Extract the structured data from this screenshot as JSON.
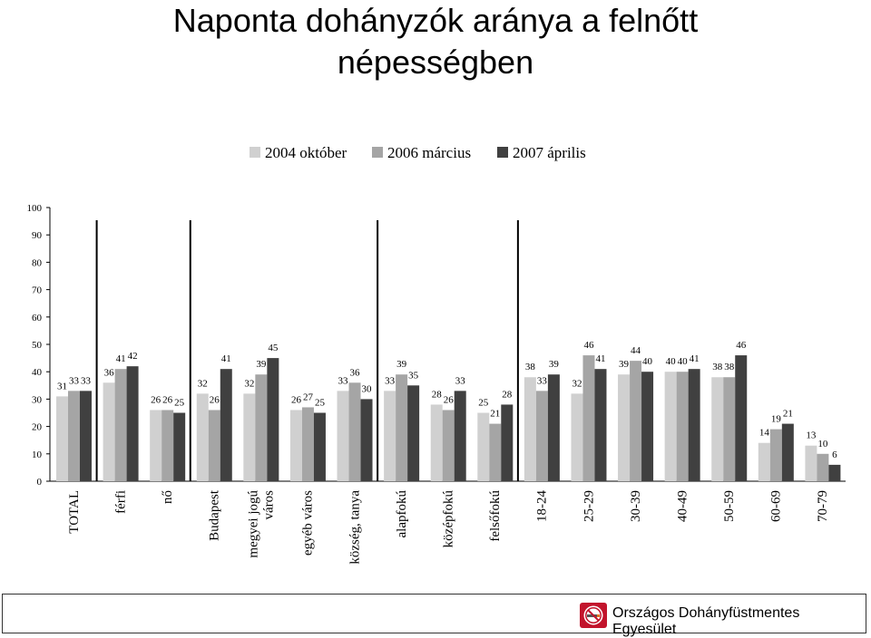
{
  "title": {
    "line1": "Naponta dohányzók aránya a felnőtt",
    "line2": "népességben"
  },
  "footer": {
    "logo_icon": "no-smoking-icon",
    "text": "Országos Dohányfüstmentes Egyesület"
  },
  "chart_data": {
    "type": "bar",
    "title": "Naponta dohányzók aránya a felnőtt népességben",
    "ylim": [
      0,
      100
    ],
    "yticks": [
      0,
      10,
      20,
      30,
      40,
      50,
      60,
      70,
      80,
      90,
      100
    ],
    "legend_position": "top",
    "grid": false,
    "categories": [
      [
        "TOTAL"
      ],
      [
        "férfi"
      ],
      [
        "nő"
      ],
      [
        "Budapest"
      ],
      [
        "megyei jogú",
        "város"
      ],
      [
        "egyéb város"
      ],
      [
        "község, tanya"
      ],
      [
        "alapfokú"
      ],
      [
        "középfokú"
      ],
      [
        "felsőfokú"
      ],
      [
        "18-24"
      ],
      [
        "25-29"
      ],
      [
        "30-39"
      ],
      [
        "40-49"
      ],
      [
        "50-59"
      ],
      [
        "60-69"
      ],
      [
        "70-79"
      ]
    ],
    "group_separators_after": [
      0,
      2,
      6,
      9
    ],
    "series": [
      {
        "name": "2004 október",
        "color": "#d0d0d0",
        "values": [
          31,
          36,
          26,
          32,
          32,
          26,
          33,
          33,
          28,
          25,
          38,
          32,
          39,
          40,
          38,
          14,
          13
        ]
      },
      {
        "name": "2006 március",
        "color": "#a5a5a5",
        "values": [
          33,
          41,
          26,
          26,
          39,
          27,
          36,
          39,
          26,
          21,
          33,
          46,
          44,
          40,
          38,
          19,
          10
        ]
      },
      {
        "name": "2007 április",
        "color": "#404040",
        "values": [
          33,
          42,
          25,
          41,
          45,
          25,
          30,
          35,
          33,
          28,
          39,
          41,
          40,
          41,
          46,
          21,
          6
        ]
      }
    ]
  }
}
